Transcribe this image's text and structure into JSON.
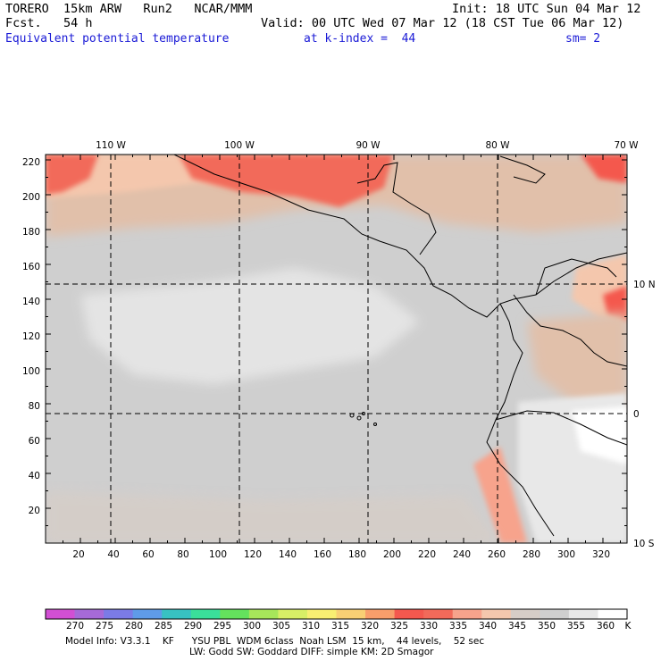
{
  "header": {
    "model": "TORERO  15km ARW   Run2   NCAR/MMM",
    "init": "Init: 18 UTC Sun 04 Mar 12",
    "fcst": "Fcst.   54 h",
    "valid": "Valid: 00 UTC Wed 07 Mar 12 (18 CST Tue 06 Mar 12)",
    "field": "Equivalent potential temperature",
    "level": "at k-index =  44",
    "smooth": "sm= 2"
  },
  "map": {
    "top_lon_labels": [
      "110 W",
      "100 W",
      "90 W",
      "80 W",
      "70 W"
    ],
    "left_y_labels": [
      "220",
      "200",
      "180",
      "160",
      "140",
      "120",
      "100",
      "80",
      "60",
      "40",
      "20"
    ],
    "right_lat_labels": [
      "10 N",
      "0",
      "10 S"
    ],
    "bottom_x_labels": [
      "20",
      "40",
      "60",
      "80",
      "100",
      "120",
      "140",
      "160",
      "180",
      "200",
      "220",
      "240",
      "260",
      "280",
      "300",
      "320"
    ]
  },
  "colorbar": {
    "unit": "K",
    "labels": [
      "270",
      "275",
      "280",
      "285",
      "290",
      "295",
      "300",
      "305",
      "310",
      "315",
      "320",
      "325",
      "330",
      "335",
      "340",
      "345",
      "350",
      "355",
      "360"
    ],
    "colors": [
      "#d24fd4",
      "#a66ad8",
      "#7b7be6",
      "#5f9be8",
      "#38c2c2",
      "#3adf9a",
      "#64e15d",
      "#a7e65a",
      "#d8ee66",
      "#f8ee72",
      "#f8cf74",
      "#f89e6b",
      "#f4584e",
      "#f26a5a",
      "#f7a38c",
      "#f4c7ad",
      "#d6cdc7",
      "#cfcfcf",
      "#e8e8e8",
      "#ffffff"
    ]
  },
  "footer": {
    "line1": "Model Info: V3.3.1    KF      YSU PBL  WDM 6class  Noah LSM  15 km,    44 levels,    52 sec",
    "line2": "LW: Godd SW: Goddard DIFF: simple KM: 2D Smagor"
  }
}
